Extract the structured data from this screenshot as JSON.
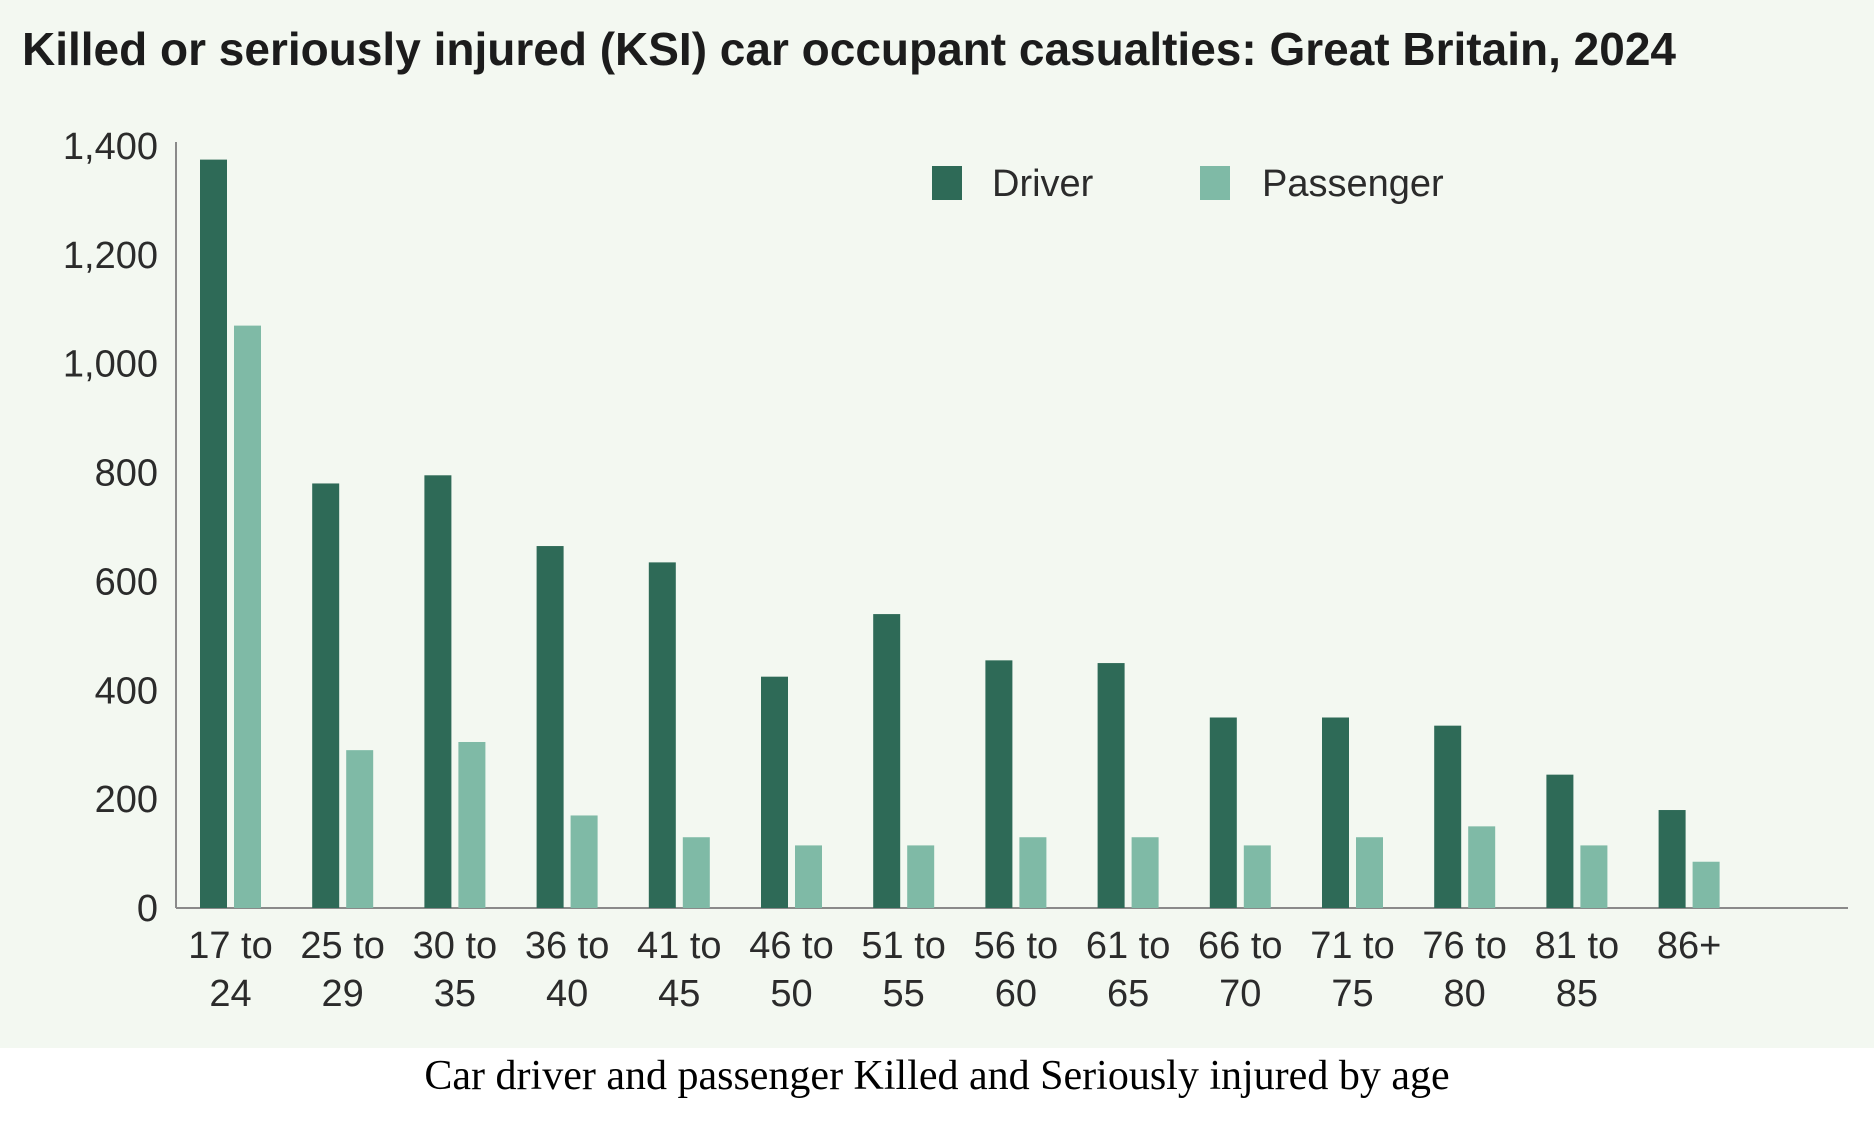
{
  "chart_data": {
    "type": "bar",
    "title": "Killed or seriously injured (KSI) car occupant casualties: Great Britain, 2024",
    "caption": "Car driver and passenger Killed and Seriously injured by age",
    "xlabel": "",
    "ylabel": "",
    "ylim": [
      0,
      1400
    ],
    "yticks": [
      0,
      200,
      400,
      600,
      800,
      1000,
      1200,
      1400
    ],
    "ytick_labels": [
      "0",
      "200",
      "400",
      "600",
      "800",
      "1,000",
      "1,200",
      "1,400"
    ],
    "categories": [
      [
        "17 to",
        "24"
      ],
      [
        "25 to",
        "29"
      ],
      [
        "30 to",
        "35"
      ],
      [
        "36 to",
        "40"
      ],
      [
        "41 to",
        "45"
      ],
      [
        "46 to",
        "50"
      ],
      [
        "51 to",
        "55"
      ],
      [
        "56 to",
        "60"
      ],
      [
        "61 to",
        "65"
      ],
      [
        "66 to",
        "70"
      ],
      [
        "71 to",
        "75"
      ],
      [
        "76 to",
        "80"
      ],
      [
        "81 to",
        "85"
      ],
      [
        "86+"
      ]
    ],
    "series": [
      {
        "name": "Driver",
        "color": "#2e6a57",
        "values": [
          1375,
          780,
          795,
          665,
          635,
          425,
          540,
          455,
          450,
          350,
          350,
          335,
          245,
          180
        ]
      },
      {
        "name": "Passenger",
        "color": "#7fbaa6",
        "values": [
          1070,
          290,
          305,
          170,
          130,
          115,
          115,
          130,
          130,
          115,
          130,
          150,
          115,
          85
        ]
      }
    ],
    "legend_position": "top-right",
    "grid": false
  }
}
